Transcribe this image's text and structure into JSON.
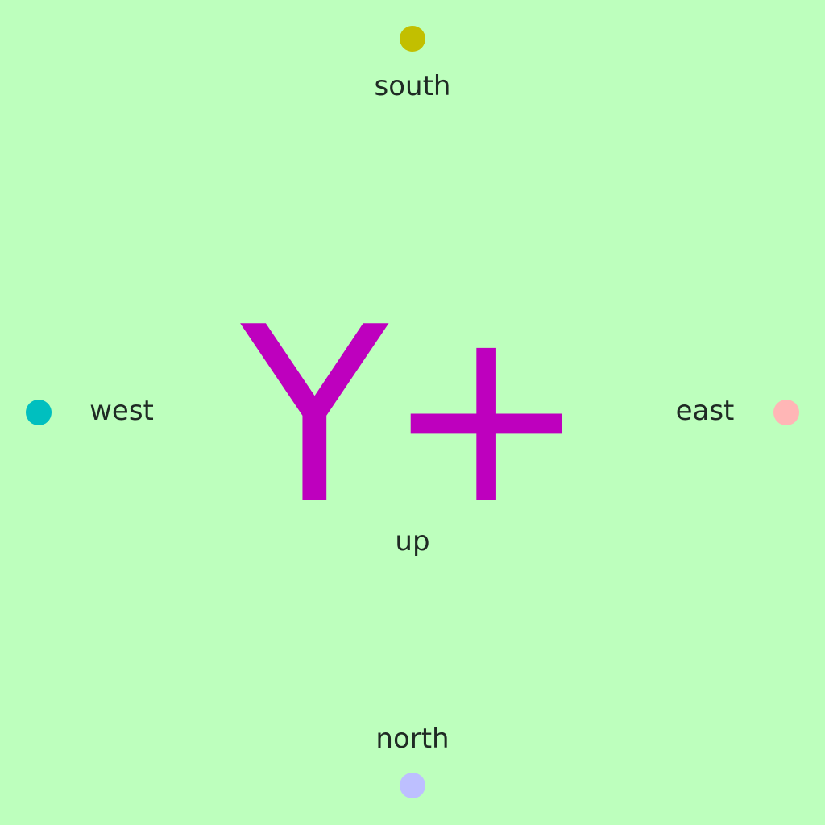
{
  "background_color": "#bdffbd",
  "symbol": {
    "text": "Y+",
    "color": "#be00be"
  },
  "center_label": "up",
  "directions": {
    "south": {
      "label": "south",
      "dot_color": "#c2bf00"
    },
    "north": {
      "label": "north",
      "dot_color": "#bdbfff"
    },
    "west": {
      "label": "west",
      "dot_color": "#00bfbf"
    },
    "east": {
      "label": "east",
      "dot_color": "#ffb6b6"
    }
  }
}
